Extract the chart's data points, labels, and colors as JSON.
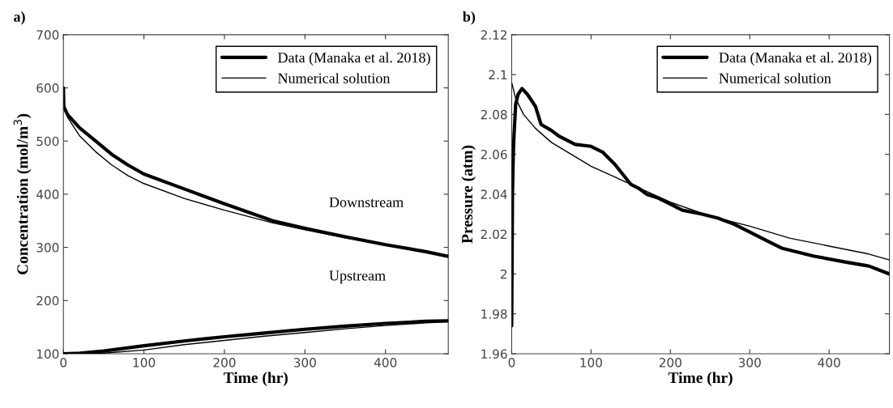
{
  "chart_data": [
    {
      "type": "line",
      "title": "a)",
      "xlabel": "Time (hr)",
      "ylabel": "Concentration (mol/m$^{3}$)",
      "xlim": [
        0,
        478
      ],
      "xticks": [
        0,
        100,
        200,
        300,
        400
      ],
      "ylim": [
        100,
        700
      ],
      "yticks": [
        100,
        200,
        300,
        400,
        500,
        600,
        700
      ],
      "legend": "top right",
      "grid": false,
      "annotations": [
        "Downstream",
        "Upstream"
      ],
      "series": [
        {
          "name": "Data (Manaka et al. 2018)",
          "color": "#000000",
          "x": [
            0,
            0.5,
            5,
            20,
            40,
            60,
            80,
            100,
            150,
            200,
            260,
            300,
            350,
            400,
            450,
            478
          ],
          "values": [
            600,
            565,
            550,
            525,
            500,
            475,
            455,
            438,
            410,
            382,
            350,
            336,
            320,
            305,
            292,
            283
          ]
        },
        {
          "name": "Numerical solution",
          "color": "#000000",
          "x": [
            0,
            5,
            20,
            40,
            60,
            80,
            100,
            150,
            200,
            260,
            300,
            350,
            400,
            478
          ],
          "values": [
            575,
            545,
            510,
            480,
            455,
            435,
            420,
            392,
            370,
            346,
            333,
            318,
            305,
            285
          ]
        },
        {
          "color": "#000000",
          "x": [
            0,
            20,
            50,
            100,
            150,
            200,
            250,
            300,
            350,
            400,
            450,
            478
          ],
          "values": [
            100,
            101,
            105,
            115,
            124,
            132,
            139,
            146,
            152,
            157,
            161,
            162
          ]
        },
        {
          "color": "#000000",
          "x": [
            0,
            50,
            100,
            150,
            200,
            250,
            300,
            350,
            400,
            450,
            478
          ],
          "values": [
            100,
            101,
            107,
            117,
            125,
            133,
            140,
            147,
            153,
            158,
            160
          ]
        }
      ]
    },
    {
      "type": "line",
      "title": "b)",
      "xlabel": "Time (hr)",
      "ylabel": "Pressure (atm)",
      "xlim": [
        0,
        476
      ],
      "xticks": [
        0,
        100,
        200,
        300,
        400
      ],
      "ylim": [
        1.96,
        2.12
      ],
      "yticks": [
        1.96,
        1.98,
        {
          "value": 2.0,
          "label": "2"
        },
        2.02,
        2.04,
        2.06,
        2.08,
        {
          "value": 2.1,
          "label": "2.1"
        },
        2.12
      ],
      "legend": "top right",
      "grid": false,
      "series": [
        {
          "name": "Data (Manaka et al. 2018)",
          "color": "#000000",
          "x": [
            0,
            1,
            2,
            3,
            5,
            8,
            13,
            20,
            30,
            37,
            50,
            60,
            80,
            100,
            115,
            130,
            140,
            150,
            160,
            170,
            185,
            200,
            215,
            240,
            260,
            280,
            300,
            320,
            340,
            380,
            420,
            450,
            476
          ],
          "values": [
            1.974,
            2.04,
            2.06,
            2.07,
            2.085,
            2.09,
            2.093,
            2.09,
            2.084,
            2.075,
            2.072,
            2.069,
            2.065,
            2.064,
            2.061,
            2.055,
            2.05,
            2.045,
            2.043,
            2.04,
            2.038,
            2.035,
            2.032,
            2.03,
            2.028,
            2.025,
            2.021,
            2.017,
            2.013,
            2.009,
            2.006,
            2.004,
            2.0
          ]
        },
        {
          "name": "Numerical solution",
          "color": "#000000",
          "x": [
            0,
            5,
            15,
            30,
            50,
            75,
            100,
            150,
            200,
            250,
            300,
            350,
            400,
            450,
            476
          ],
          "values": [
            2.096,
            2.088,
            2.08,
            2.073,
            2.066,
            2.06,
            2.054,
            2.045,
            2.036,
            2.029,
            2.024,
            2.018,
            2.014,
            2.01,
            2.007
          ]
        }
      ]
    }
  ]
}
